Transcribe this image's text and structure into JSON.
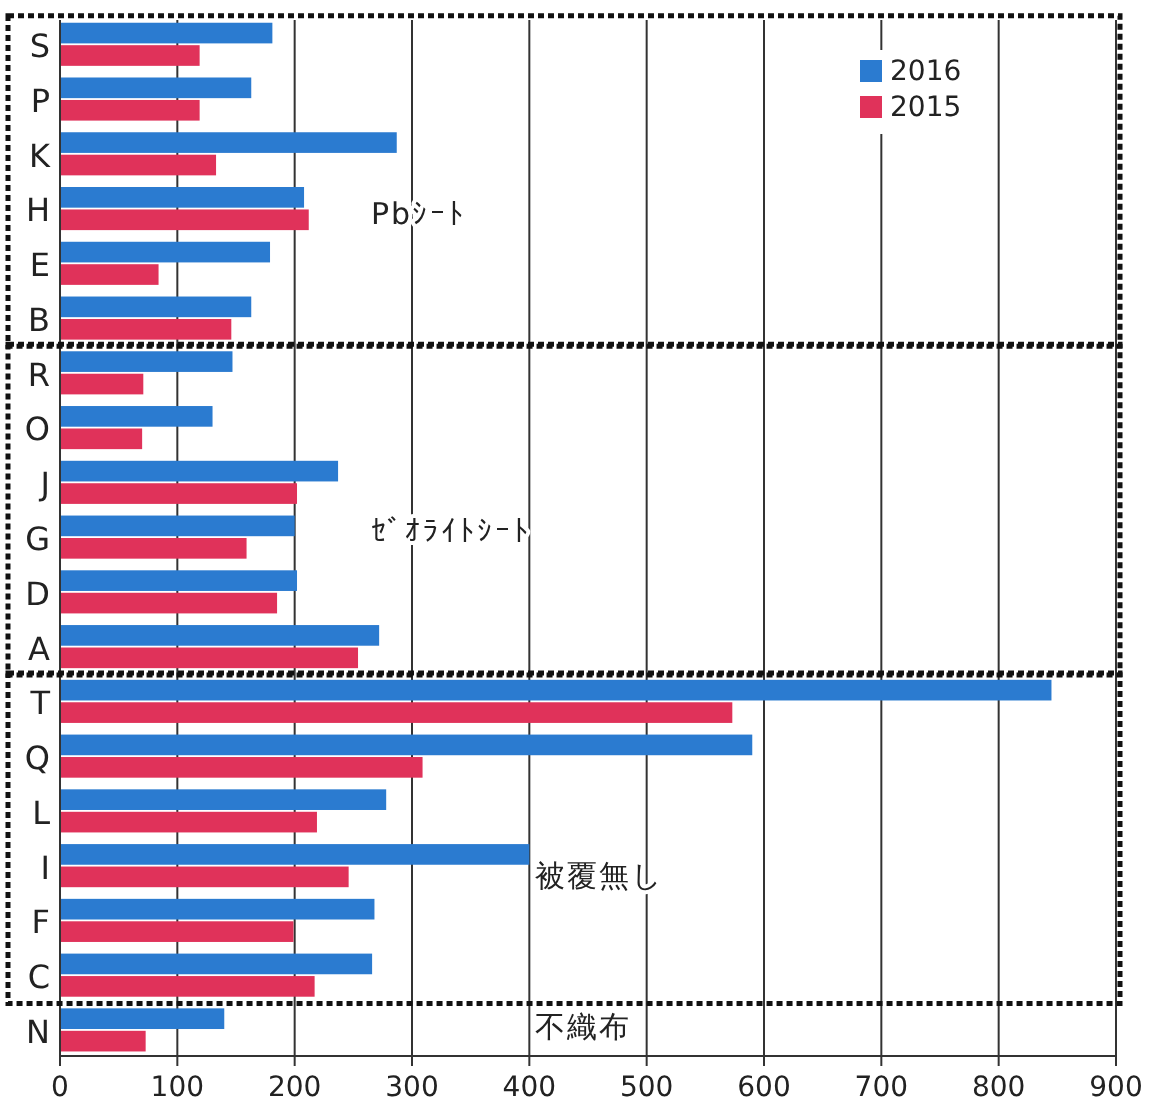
{
  "chart_data": {
    "type": "bar",
    "orientation": "horizontal",
    "categories": [
      "S",
      "P",
      "K",
      "H",
      "E",
      "B",
      "R",
      "O",
      "J",
      "G",
      "D",
      "A",
      "T",
      "Q",
      "L",
      "I",
      "F",
      "C",
      "N"
    ],
    "series": [
      {
        "name": "2016",
        "color": "#2b7bd0",
        "values": [
          181,
          163,
          287,
          208,
          179,
          163,
          147,
          130,
          237,
          200,
          202,
          272,
          845,
          590,
          278,
          400,
          268,
          266,
          140
        ]
      },
      {
        "name": "2015",
        "color": "#e0325a",
        "values": [
          119,
          119,
          133,
          212,
          84,
          146,
          71,
          70,
          202,
          159,
          185,
          254,
          573,
          309,
          219,
          246,
          199,
          217,
          73
        ]
      }
    ],
    "xlim": [
      0,
      900
    ],
    "xticks": [
      0,
      100,
      200,
      300,
      400,
      500,
      600,
      700,
      800,
      900
    ],
    "grid": "x",
    "legend": "top right",
    "annotations": [
      "Pbｼｰﾄ",
      "ｾﾞｵﾗｲﾄｼｰﾄ",
      "被覆無し",
      "不織布"
    ]
  }
}
